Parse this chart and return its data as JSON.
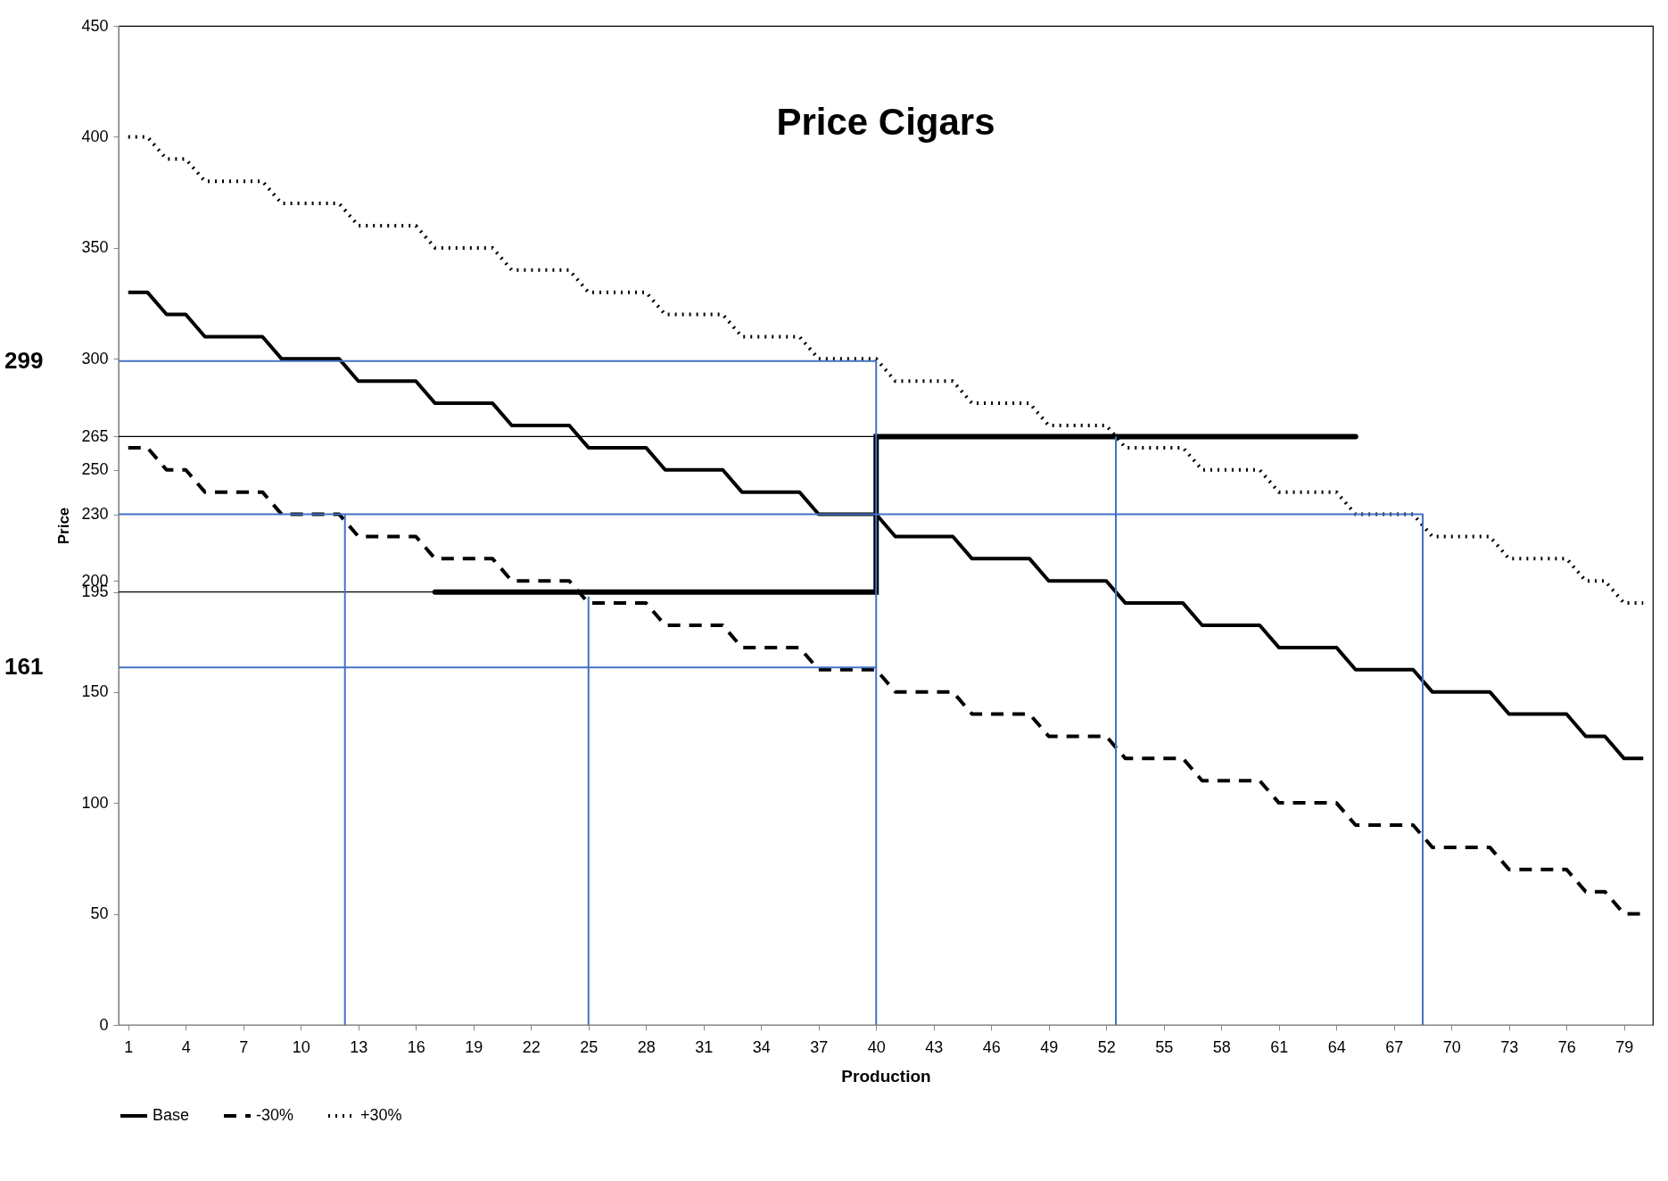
{
  "chart_data": {
    "type": "line",
    "title": "Price Cigars",
    "xlabel": "Production",
    "ylabel": "Price",
    "xlim": [
      0.5,
      80.5
    ],
    "xticks": [
      1,
      4,
      7,
      10,
      13,
      16,
      19,
      22,
      25,
      28,
      31,
      34,
      37,
      40,
      43,
      46,
      49,
      52,
      55,
      58,
      61,
      64,
      67,
      70,
      73,
      76,
      79
    ],
    "ylim": [
      0,
      450
    ],
    "yticks": [
      0,
      50,
      100,
      150,
      195,
      200,
      230,
      250,
      265,
      300,
      350,
      400,
      450
    ],
    "grid": false,
    "legend": "bottom",
    "series": [
      {
        "name": "Base",
        "color": "#000000",
        "line_style": "solid",
        "x": [
          1,
          2,
          3,
          4,
          5,
          6,
          7,
          8,
          9,
          10,
          11,
          12,
          13,
          14,
          15,
          16,
          17,
          18,
          19,
          20,
          21,
          22,
          23,
          24,
          25,
          26,
          27,
          28,
          29,
          30,
          31,
          32,
          33,
          34,
          35,
          36,
          37,
          38,
          39,
          40,
          41,
          42,
          43,
          44,
          45,
          46,
          47,
          48,
          49,
          50,
          51,
          52,
          53,
          54,
          55,
          56,
          57,
          58,
          59,
          60,
          61,
          62,
          63,
          64,
          65,
          66,
          67,
          68,
          69,
          70,
          71,
          72,
          73,
          74,
          75,
          76,
          77,
          78,
          79,
          80
        ],
        "values": [
          330,
          330,
          320,
          320,
          310,
          310,
          310,
          310,
          300,
          300,
          300,
          300,
          290,
          290,
          290,
          290,
          280,
          280,
          280,
          280,
          270,
          270,
          270,
          270,
          260,
          260,
          260,
          260,
          250,
          250,
          250,
          250,
          240,
          240,
          240,
          240,
          230,
          230,
          230,
          230,
          220,
          220,
          220,
          220,
          210,
          210,
          210,
          210,
          200,
          200,
          200,
          200,
          190,
          190,
          190,
          190,
          180,
          180,
          180,
          180,
          170,
          170,
          170,
          170,
          160,
          160,
          160,
          160,
          150,
          150,
          150,
          150,
          140,
          140,
          140,
          140,
          130,
          130,
          120,
          120
        ]
      },
      {
        "name": "-30%",
        "color": "#000000",
        "line_style": "dashed",
        "x": [
          1,
          2,
          3,
          4,
          5,
          6,
          7,
          8,
          9,
          10,
          11,
          12,
          13,
          14,
          15,
          16,
          17,
          18,
          19,
          20,
          21,
          22,
          23,
          24,
          25,
          26,
          27,
          28,
          29,
          30,
          31,
          32,
          33,
          34,
          35,
          36,
          37,
          38,
          39,
          40,
          41,
          42,
          43,
          44,
          45,
          46,
          47,
          48,
          49,
          50,
          51,
          52,
          53,
          54,
          55,
          56,
          57,
          58,
          59,
          60,
          61,
          62,
          63,
          64,
          65,
          66,
          67,
          68,
          69,
          70,
          71,
          72,
          73,
          74,
          75,
          76,
          77,
          78,
          79,
          80
        ],
        "values": [
          260,
          260,
          250,
          250,
          240,
          240,
          240,
          240,
          230,
          230,
          230,
          230,
          220,
          220,
          220,
          220,
          210,
          210,
          210,
          210,
          200,
          200,
          200,
          200,
          190,
          190,
          190,
          190,
          180,
          180,
          180,
          180,
          170,
          170,
          170,
          170,
          160,
          160,
          160,
          160,
          150,
          150,
          150,
          150,
          140,
          140,
          140,
          140,
          130,
          130,
          130,
          130,
          120,
          120,
          120,
          120,
          110,
          110,
          110,
          110,
          100,
          100,
          100,
          100,
          90,
          90,
          90,
          90,
          80,
          80,
          80,
          80,
          70,
          70,
          70,
          70,
          60,
          60,
          50,
          50
        ]
      },
      {
        "name": "+30%",
        "color": "#000000",
        "line_style": "dotted",
        "x": [
          1,
          2,
          3,
          4,
          5,
          6,
          7,
          8,
          9,
          10,
          11,
          12,
          13,
          14,
          15,
          16,
          17,
          18,
          19,
          20,
          21,
          22,
          23,
          24,
          25,
          26,
          27,
          28,
          29,
          30,
          31,
          32,
          33,
          34,
          35,
          36,
          37,
          38,
          39,
          40,
          41,
          42,
          43,
          44,
          45,
          46,
          47,
          48,
          49,
          50,
          51,
          52,
          53,
          54,
          55,
          56,
          57,
          58,
          59,
          60,
          61,
          62,
          63,
          64,
          65,
          66,
          67,
          68,
          69,
          70,
          71,
          72,
          73,
          74,
          75,
          76,
          77,
          78,
          79,
          80
        ],
        "values": [
          400,
          400,
          390,
          390,
          380,
          380,
          380,
          380,
          370,
          370,
          370,
          370,
          360,
          360,
          360,
          360,
          350,
          350,
          350,
          350,
          340,
          340,
          340,
          340,
          330,
          330,
          330,
          330,
          320,
          320,
          320,
          320,
          310,
          310,
          310,
          310,
          300,
          300,
          300,
          300,
          290,
          290,
          290,
          290,
          280,
          280,
          280,
          280,
          270,
          270,
          270,
          270,
          260,
          260,
          260,
          260,
          250,
          250,
          250,
          250,
          240,
          240,
          240,
          240,
          230,
          230,
          230,
          230,
          220,
          220,
          220,
          220,
          210,
          210,
          210,
          210,
          200,
          200,
          190,
          190
        ]
      },
      {
        "type": "step",
        "color": "#000000",
        "x": [
          17,
          40,
          65
        ],
        "values": [
          195,
          265,
          265
        ]
      },
      {
        "color": "#000000",
        "x": [
          0.5,
          40
        ],
        "values": [
          265,
          265
        ]
      },
      {
        "color": "#000000",
        "x": [
          0.5,
          17
        ],
        "values": [
          195,
          195
        ]
      },
      {
        "color": "#4472c4",
        "x": [
          0.5,
          40,
          40
        ],
        "values": [
          299,
          299,
          0
        ]
      },
      {
        "color": "#4472c4",
        "x": [
          0.5,
          68.5,
          68.5
        ],
        "values": [
          230,
          230,
          0
        ]
      },
      {
        "color": "#4472c4",
        "x": [
          0.5,
          40
        ],
        "values": [
          161,
          161
        ]
      },
      {
        "color": "#4472c4",
        "x": [
          12.3,
          12.3
        ],
        "values": [
          0,
          230
        ]
      },
      {
        "color": "#4472c4",
        "x": [
          25,
          25
        ],
        "values": [
          0,
          193
        ]
      },
      {
        "color": "#4472c4",
        "x": [
          52.5,
          52.5
        ],
        "values": [
          0,
          265
        ]
      }
    ],
    "annotations": [
      "299",
      "161"
    ]
  }
}
